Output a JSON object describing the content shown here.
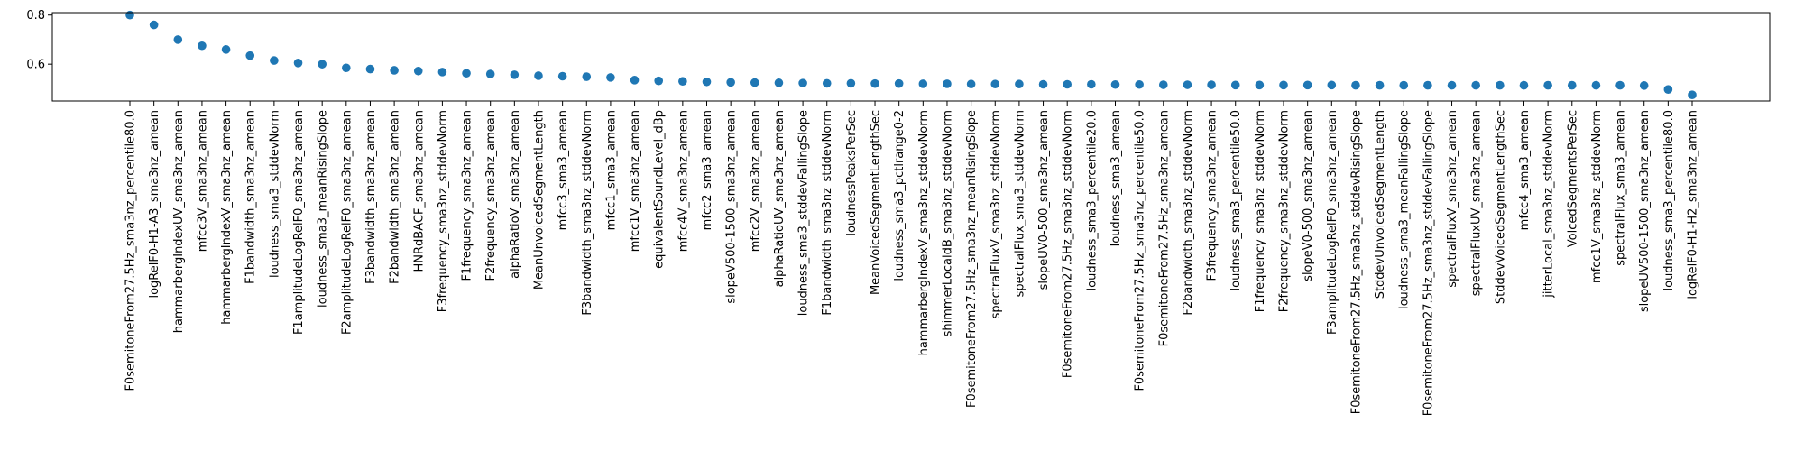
{
  "chart_data": {
    "type": "scatter",
    "title": "",
    "xlabel": "",
    "ylabel": "",
    "ylim": [
      0.45,
      0.81
    ],
    "yticks": [
      0.6,
      0.8
    ],
    "ytick_labels": [
      "0.6",
      "0.8"
    ],
    "grid": false,
    "legend": "none",
    "marker_color": "#1f77b4",
    "categories": [
      "F0semitoneFrom27.5Hz_sma3nz_percentile80.0",
      "logRelF0-H1-A3_sma3nz_amean",
      "hammarbergIndexUV_sma3nz_amean",
      "mfcc3V_sma3nz_amean",
      "hammarbergIndexV_sma3nz_amean",
      "F1bandwidth_sma3nz_amean",
      "loudness_sma3_stddevNorm",
      "F1amplitudeLogRelF0_sma3nz_amean",
      "loudness_sma3_meanRisingSlope",
      "F2amplitudeLogRelF0_sma3nz_amean",
      "F3bandwidth_sma3nz_amean",
      "F2bandwidth_sma3nz_amean",
      "HNRdBACF_sma3nz_amean",
      "F3frequency_sma3nz_stddevNorm",
      "F1frequency_sma3nz_amean",
      "F2frequency_sma3nz_amean",
      "alphaRatioV_sma3nz_amean",
      "MeanUnvoicedSegmentLength",
      "mfcc3_sma3_amean",
      "F3bandwidth_sma3nz_stddevNorm",
      "mfcc1_sma3_amean",
      "mfcc1V_sma3nz_amean",
      "equivalentSoundLevel_dBp",
      "mfcc4V_sma3nz_amean",
      "mfcc2_sma3_amean",
      "slopeV500-1500_sma3nz_amean",
      "mfcc2V_sma3nz_amean",
      "alphaRatioUV_sma3nz_amean",
      "loudness_sma3_stddevFallingSlope",
      "F1bandwidth_sma3nz_stddevNorm",
      "loudnessPeaksPerSec",
      "MeanVoicedSegmentLengthSec",
      "loudness_sma3_pctlrange0-2",
      "hammarbergIndexV_sma3nz_stddevNorm",
      "shimmerLocaldB_sma3nz_stddevNorm",
      "F0semitoneFrom27.5Hz_sma3nz_meanRisingSlope",
      "spectralFluxV_sma3nz_stddevNorm",
      "spectralFlux_sma3_stddevNorm",
      "slopeUV0-500_sma3nz_amean",
      "F0semitoneFrom27.5Hz_sma3nz_stddevNorm",
      "loudness_sma3_percentile20.0",
      "loudness_sma3_amean",
      "F0semitoneFrom27.5Hz_sma3nz_percentile50.0",
      "F0semitoneFrom27.5Hz_sma3nz_amean",
      "F2bandwidth_sma3nz_stddevNorm",
      "F3frequency_sma3nz_amean",
      "loudness_sma3_percentile50.0",
      "F1frequency_sma3nz_stddevNorm",
      "F2frequency_sma3nz_stddevNorm",
      "slopeV0-500_sma3nz_amean",
      "F3amplitudeLogRelF0_sma3nz_amean",
      "F0semitoneFrom27.5Hz_sma3nz_stddevRisingSlope",
      "StddevUnvoicedSegmentLength",
      "loudness_sma3_meanFallingSlope",
      "F0semitoneFrom27.5Hz_sma3nz_stddevFallingSlope",
      "spectralFluxV_sma3nz_amean",
      "spectralFluxUV_sma3nz_amean",
      "StddevVoicedSegmentLengthSec",
      "mfcc4_sma3_amean",
      "jitterLocal_sma3nz_stddevNorm",
      "VoicedSegmentsPerSec",
      "mfcc1V_sma3nz_stddevNorm",
      "spectralFlux_sma3_amean",
      "slopeUV500-1500_sma3nz_amean",
      "loudness_sma3_percentile80.0",
      "logRelF0-H1-H2_sma3nz_amean"
    ],
    "values": [
      0.8,
      0.76,
      0.7,
      0.675,
      0.66,
      0.635,
      0.615,
      0.605,
      0.6,
      0.585,
      0.58,
      0.575,
      0.572,
      0.568,
      0.563,
      0.56,
      0.557,
      0.553,
      0.551,
      0.549,
      0.546,
      0.535,
      0.532,
      0.53,
      0.528,
      0.526,
      0.525,
      0.524,
      0.523,
      0.522,
      0.522,
      0.521,
      0.521,
      0.52,
      0.52,
      0.519,
      0.519,
      0.519,
      0.518,
      0.518,
      0.518,
      0.517,
      0.517,
      0.516,
      0.516,
      0.516,
      0.515,
      0.515,
      0.515,
      0.515,
      0.515,
      0.514,
      0.514,
      0.514,
      0.514,
      0.514,
      0.514,
      0.514,
      0.514,
      0.514,
      0.514,
      0.514,
      0.514,
      0.513,
      0.497,
      0.475
    ]
  }
}
